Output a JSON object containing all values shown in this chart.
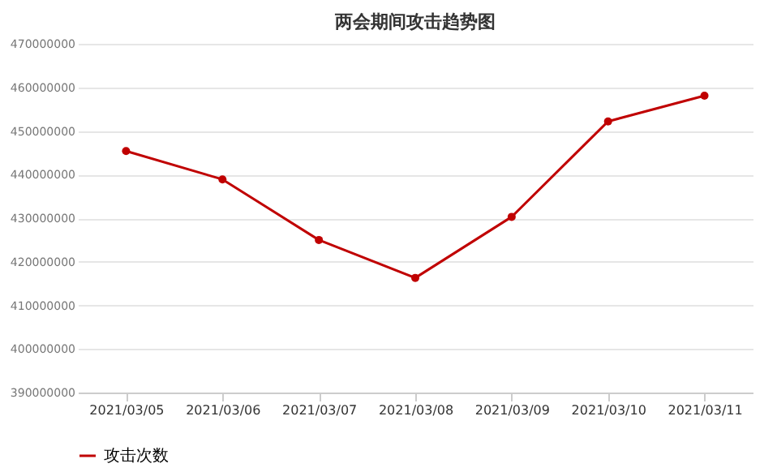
{
  "chart_data": {
    "type": "line",
    "title": "两会期间攻击趋势图",
    "categories": [
      "2021/03/05",
      "2021/03/06",
      "2021/03/07",
      "2021/03/08",
      "2021/03/09",
      "2021/03/10",
      "2021/03/11"
    ],
    "series": [
      {
        "name": "攻击次数",
        "color": "#c00000",
        "values": [
          445400000,
          438900000,
          425000000,
          416300000,
          430300000,
          452200000,
          458100000
        ]
      }
    ],
    "ylim": [
      390000000,
      470000000
    ],
    "yticks": [
      390000000,
      400000000,
      410000000,
      420000000,
      430000000,
      440000000,
      450000000,
      460000000,
      470000000
    ],
    "grid": "y",
    "legend": "bottom",
    "marker": "circle",
    "line_style": "solid"
  }
}
